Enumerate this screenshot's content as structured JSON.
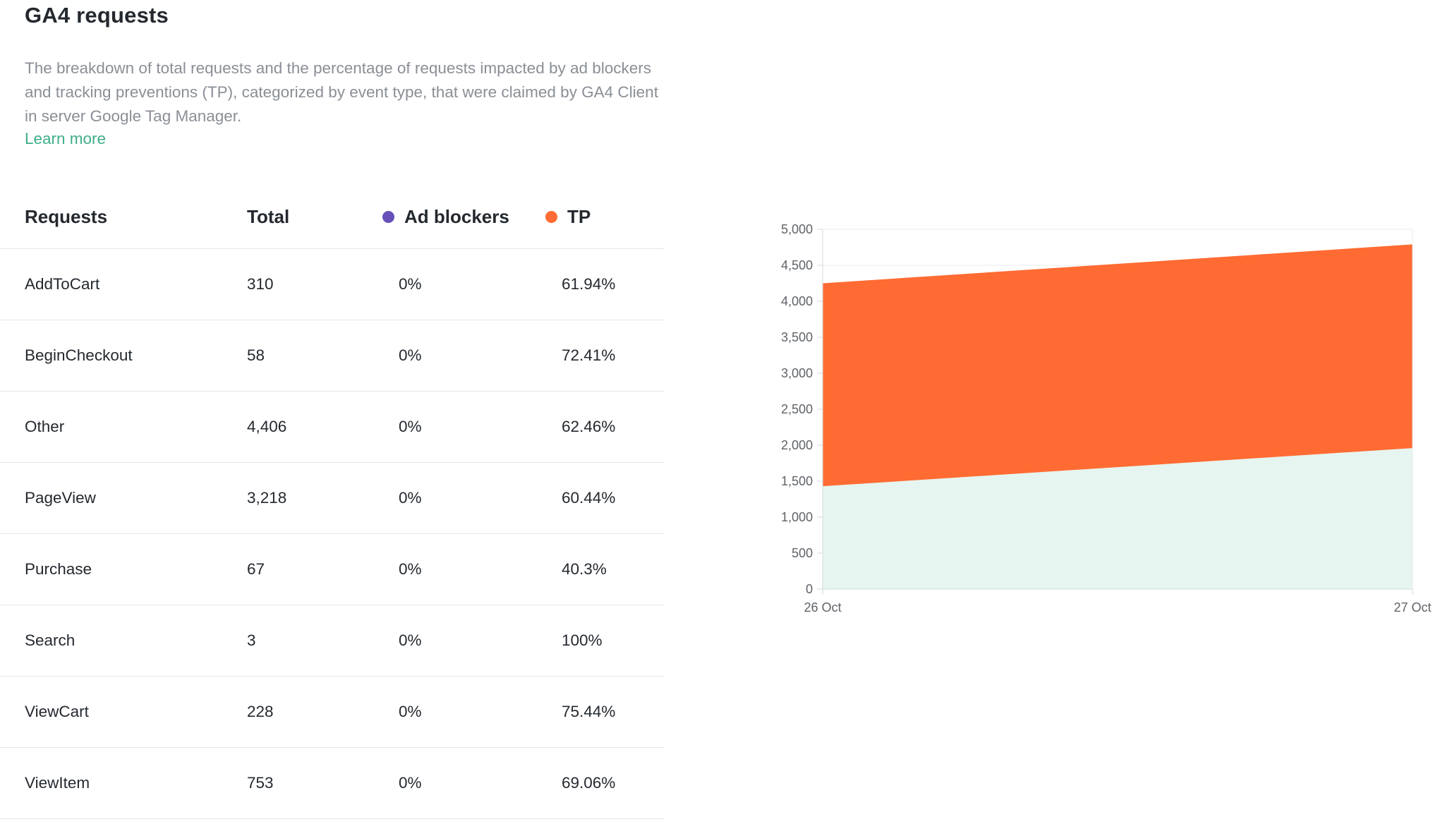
{
  "section": {
    "title": "GA4 requests",
    "description": "The breakdown of total requests and the percentage of requests impacted by ad blockers and tracking preventions (TP), categorized by event type, that were claimed by GA4 Client in server Google Tag Manager.",
    "learn_more": "Learn more"
  },
  "table": {
    "headers": {
      "requests": "Requests",
      "total": "Total",
      "ad_blockers": "Ad blockers",
      "tp": "TP"
    },
    "rows": [
      {
        "name": "AddToCart",
        "total": "310",
        "ad_blockers": "0%",
        "tp": "61.94%"
      },
      {
        "name": "BeginCheckout",
        "total": "58",
        "ad_blockers": "0%",
        "tp": "72.41%"
      },
      {
        "name": "Other",
        "total": "4,406",
        "ad_blockers": "0%",
        "tp": "62.46%"
      },
      {
        "name": "PageView",
        "total": "3,218",
        "ad_blockers": "0%",
        "tp": "60.44%"
      },
      {
        "name": "Purchase",
        "total": "67",
        "ad_blockers": "0%",
        "tp": "40.3%"
      },
      {
        "name": "Search",
        "total": "3",
        "ad_blockers": "0%",
        "tp": "100%"
      },
      {
        "name": "ViewCart",
        "total": "228",
        "ad_blockers": "0%",
        "tp": "75.44%"
      },
      {
        "name": "ViewItem",
        "total": "753",
        "ad_blockers": "0%",
        "tp": "69.06%"
      }
    ]
  },
  "colors": {
    "ad_blockers": "#6750b8",
    "tp": "#ff6b33",
    "base_area": "#e6f5ef",
    "link": "#3fae87"
  },
  "chart_data": {
    "type": "area",
    "stacked": true,
    "x": [
      "26 Oct",
      "27 Oct"
    ],
    "ylim": [
      0,
      5000
    ],
    "yticks": [
      0,
      500,
      1000,
      1500,
      2000,
      2500,
      3000,
      3500,
      4000,
      4500,
      5000
    ],
    "ytick_labels": [
      "0",
      "500",
      "1,000",
      "1,500",
      "2,000",
      "2,500",
      "3,000",
      "3,500",
      "4,000",
      "4,500",
      "5,000"
    ],
    "series": [
      {
        "key": "base",
        "values": [
          1430,
          1960
        ],
        "color": "#e6f5ef"
      },
      {
        "key": "tp",
        "values": [
          2820,
          2830
        ],
        "color": "#ff6b33"
      }
    ],
    "grid": true,
    "title": "",
    "xlabel": "",
    "ylabel": ""
  }
}
